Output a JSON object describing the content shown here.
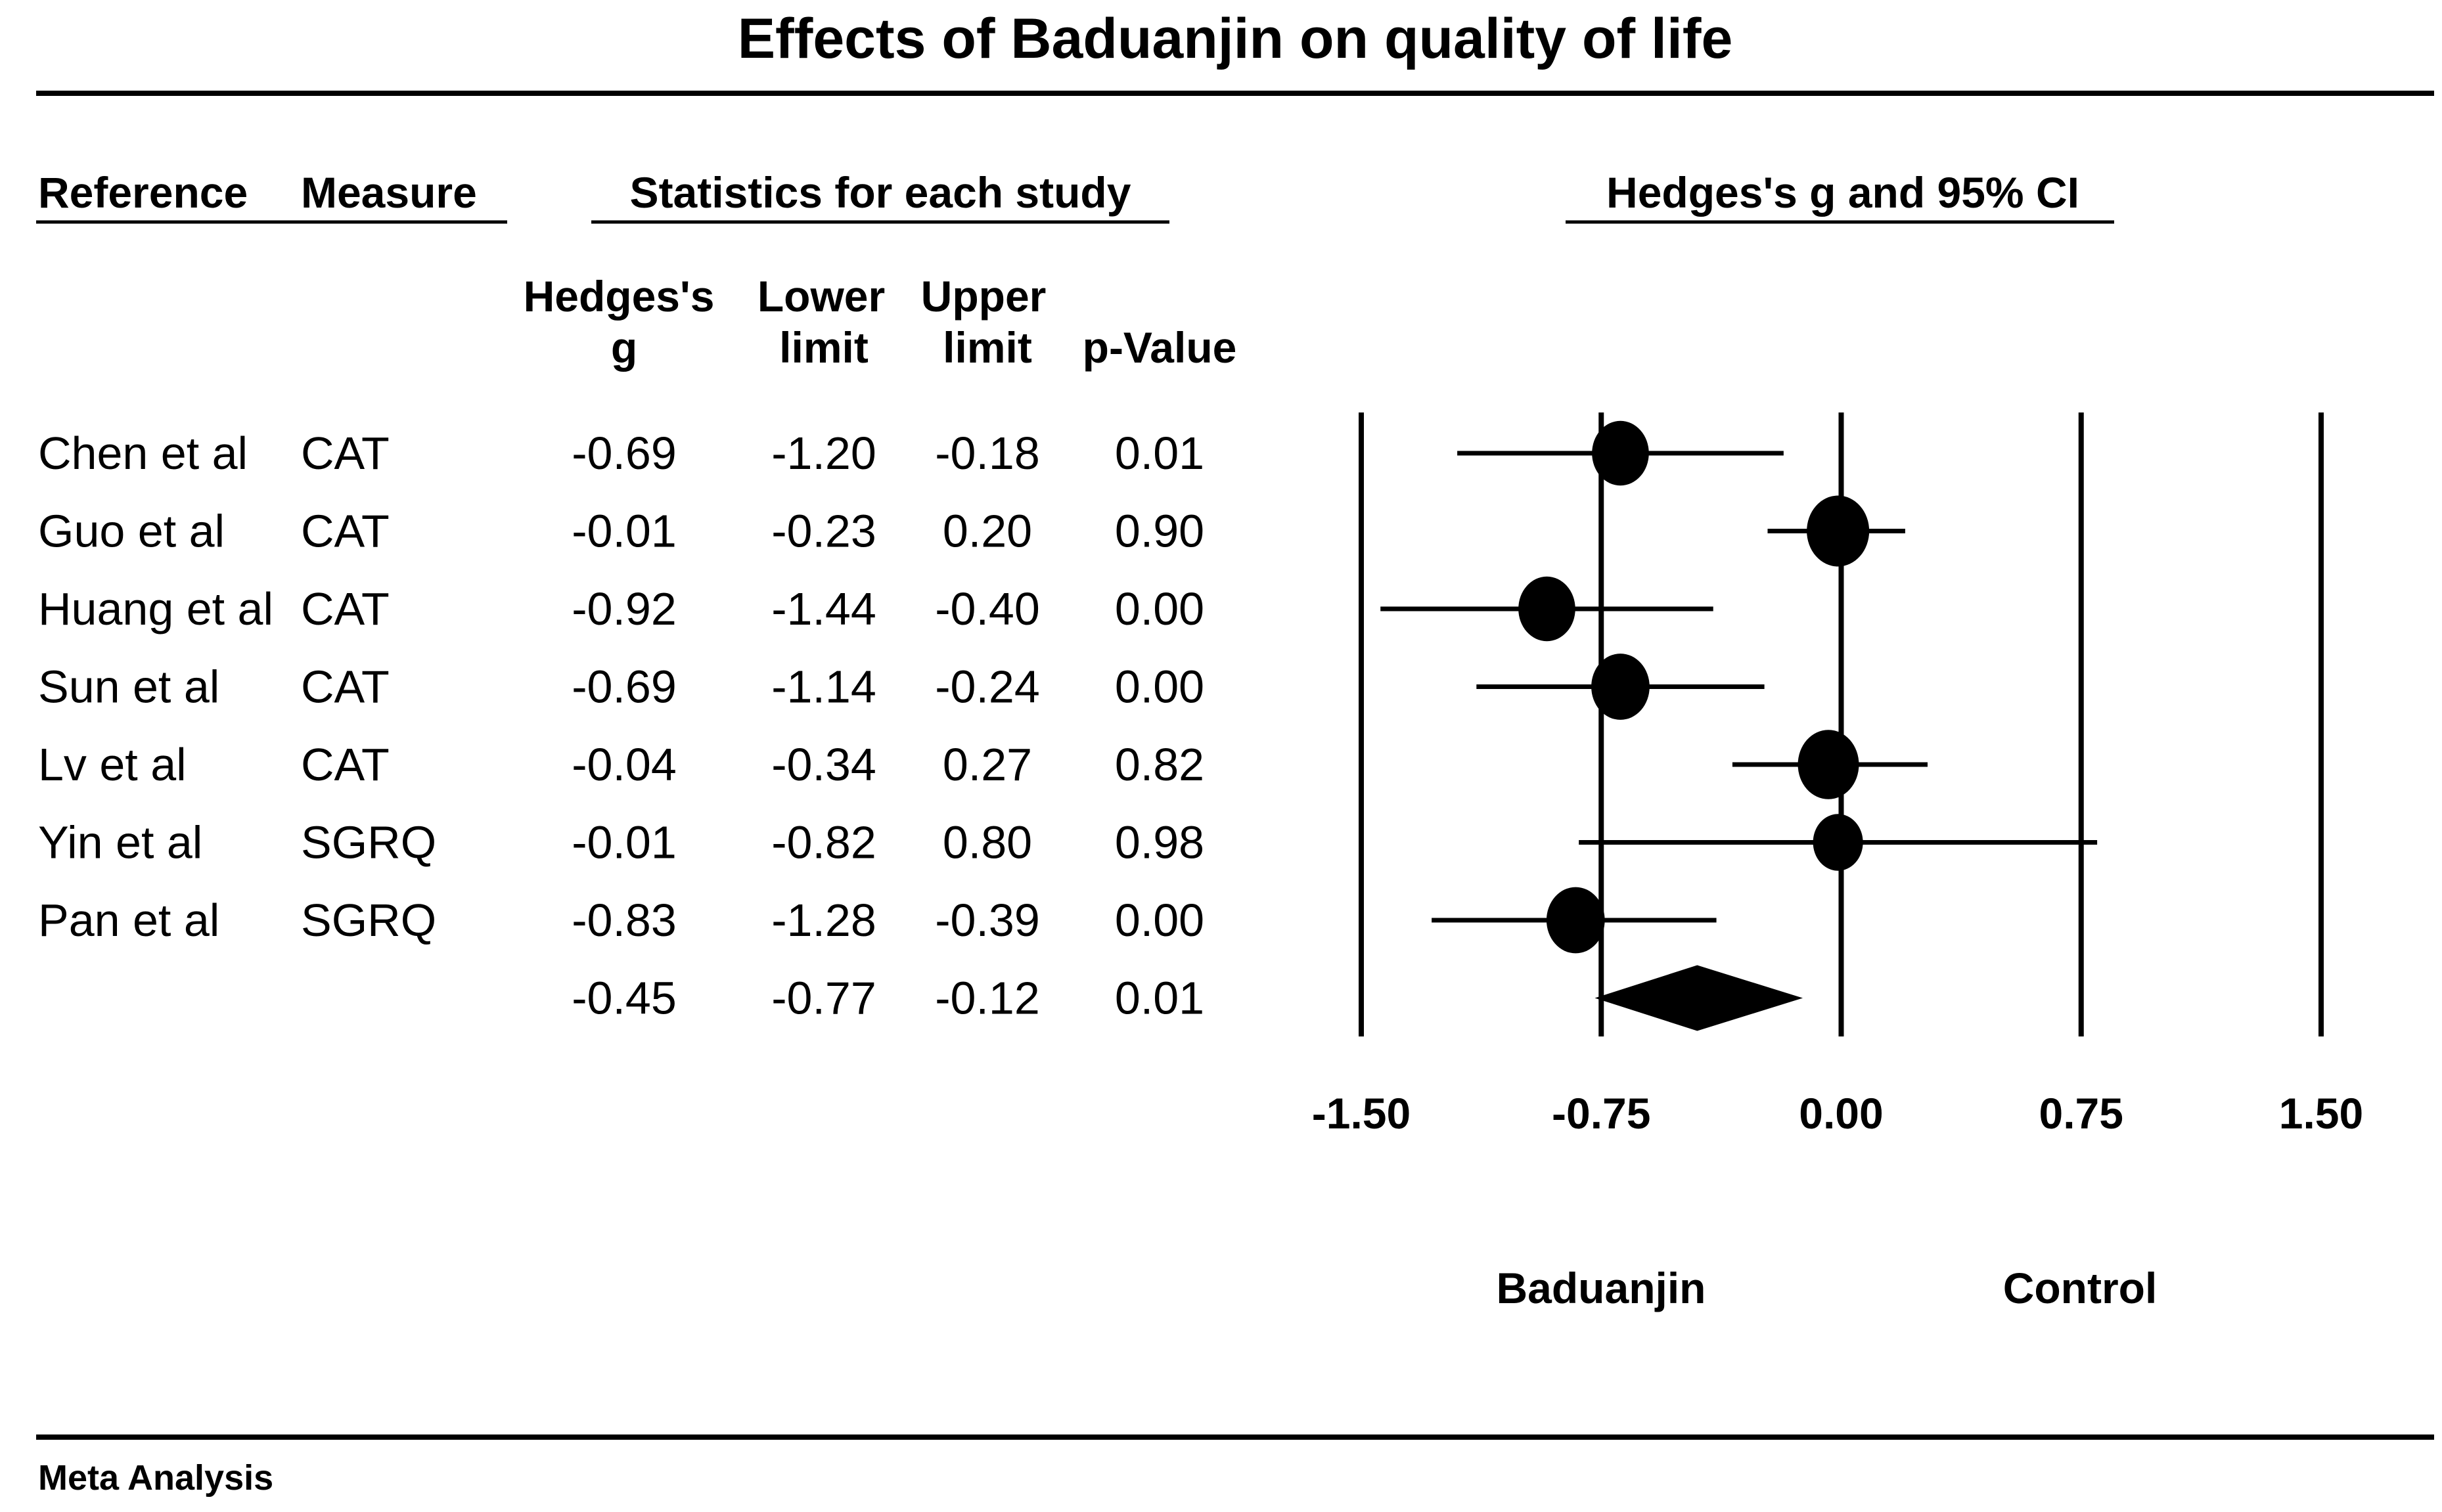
{
  "chart_data": {
    "type": "forest",
    "title": "Effects of Baduanjin on quality of life",
    "headers": {
      "reference": "Reference",
      "measure": "Measure",
      "stats_group": "Statistics for each study",
      "plot_group": "Hedges's g and 95% CI",
      "g_line1": "Hedges's",
      "g_line2": "g",
      "lower_line1": "Lower",
      "lower_line2": "limit",
      "upper_line1": "Upper",
      "upper_line2": "limit",
      "p": "p-Value"
    },
    "studies": [
      {
        "reference": "Chen et al",
        "measure": "CAT",
        "g": "-0.69",
        "lower": "-1.20",
        "upper": "-0.18",
        "p": "0.01",
        "g_val": -0.69,
        "lower_val": -1.2,
        "upper_val": -0.18,
        "weight": 0.8
      },
      {
        "reference": "Guo et al",
        "measure": "CAT",
        "g": "-0.01",
        "lower": "-0.23",
        "upper": "0.20",
        "p": "0.90",
        "g_val": -0.01,
        "lower_val": -0.23,
        "upper_val": 0.2,
        "weight": 1.0
      },
      {
        "reference": "Huang et al",
        "measure": "CAT",
        "g": "-0.92",
        "lower": "-1.44",
        "upper": "-0.40",
        "p": "0.00",
        "g_val": -0.92,
        "lower_val": -1.44,
        "upper_val": -0.4,
        "weight": 0.8
      },
      {
        "reference": "Sun et al",
        "measure": "CAT",
        "g": "-0.69",
        "lower": "-1.14",
        "upper": "-0.24",
        "p": "0.00",
        "g_val": -0.69,
        "lower_val": -1.14,
        "upper_val": -0.24,
        "weight": 0.85
      },
      {
        "reference": "Lv et al",
        "measure": "CAT",
        "g": "-0.04",
        "lower": "-0.34",
        "upper": "0.27",
        "p": "0.82",
        "g_val": -0.04,
        "lower_val": -0.34,
        "upper_val": 0.27,
        "weight": 0.95
      },
      {
        "reference": "Yin et al",
        "measure": "SGRQ",
        "g": "-0.01",
        "lower": "-0.82",
        "upper": "0.80",
        "p": "0.98",
        "g_val": -0.01,
        "lower_val": -0.82,
        "upper_val": 0.8,
        "weight": 0.55
      },
      {
        "reference": "Pan et al",
        "measure": "SGRQ",
        "g": "-0.83",
        "lower": "-1.28",
        "upper": "-0.39",
        "p": "0.00",
        "g_val": -0.83,
        "lower_val": -1.28,
        "upper_val": -0.39,
        "weight": 0.85
      }
    ],
    "summary": {
      "g": "-0.45",
      "lower": "-0.77",
      "upper": "-0.12",
      "p": "0.01",
      "g_val": -0.45,
      "lower_val": -0.77,
      "upper_val": -0.12
    },
    "xlim": [
      -1.5,
      1.5
    ],
    "ticks": [
      -1.5,
      -0.75,
      0.0,
      0.75,
      1.5
    ],
    "tick_labels": [
      "-1.50",
      "-0.75",
      "0.00",
      "0.75",
      "1.50"
    ],
    "favours_left": "Baduanjin",
    "favours_right": "Control",
    "footer": "Meta Analysis"
  }
}
